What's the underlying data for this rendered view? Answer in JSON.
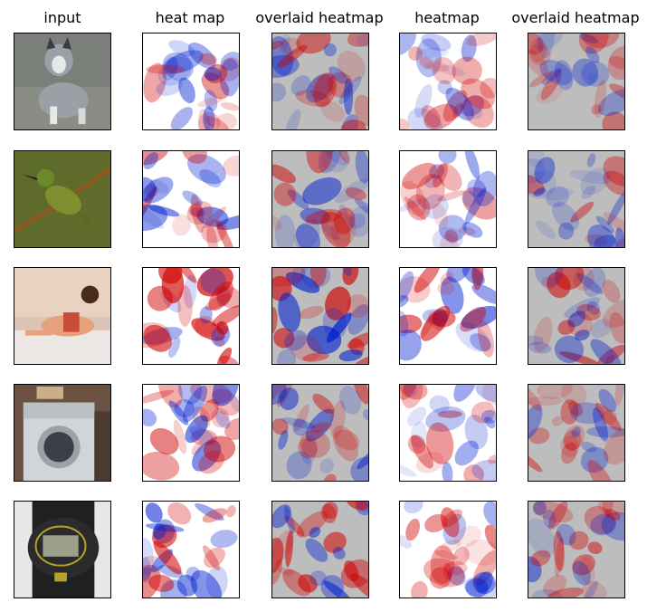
{
  "figure": {
    "column_titles": [
      "input",
      "heat map",
      "overlaid heatmap",
      "heatmap",
      "overlaid heatmap"
    ],
    "rows": [
      {
        "subject": "husky dog",
        "input_colors": {
          "bg": "#7b7f79",
          "main": "#9aa0a6",
          "accent": "#3b3c3f"
        }
      },
      {
        "subject": "bee-eater bird on branch",
        "input_colors": {
          "bg": "#5f6b2a",
          "main": "#7f8f2f",
          "accent": "#8c5a1f"
        }
      },
      {
        "subject": "person on bed",
        "input_colors": {
          "bg": "#d9c4b5",
          "main": "#e7a27b",
          "accent": "#c94b3a"
        }
      },
      {
        "subject": "washing machine",
        "input_colors": {
          "bg": "#6a5142",
          "main": "#cfd5d8",
          "accent": "#3a4045"
        }
      },
      {
        "subject": "digital wristwatch",
        "input_colors": {
          "bg": "#e7e7e7",
          "main": "#1f2022",
          "accent": "#b6a224"
        }
      }
    ]
  },
  "colors": {
    "positive": "#d00000",
    "negative": "#0020d0",
    "neutral": "#ffffff",
    "overlay_base": "#bdbdbd"
  }
}
